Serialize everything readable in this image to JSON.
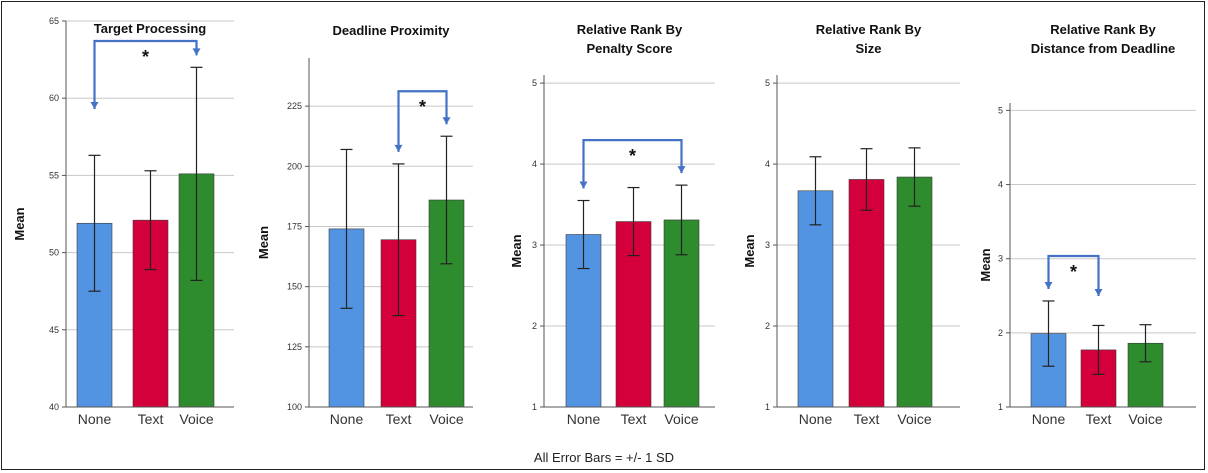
{
  "footnote": "All Error Bars = +/- 1 SD",
  "colors": {
    "None": "#5294e2",
    "Text": "#d4003c",
    "Voice": "#2e8b2e",
    "bracket": "#4472c4",
    "grid": "#c8c8c8"
  },
  "chart_data": [
    {
      "type": "bar",
      "title": [
        "Target Processing"
      ],
      "ylabel": "Mean",
      "categories": [
        "None",
        "Text",
        "Voice"
      ],
      "values": [
        51.9,
        52.1,
        55.1
      ],
      "error_sd": [
        4.4,
        3.2,
        6.9
      ],
      "ylim": [
        40,
        65
      ],
      "yticks": [
        40,
        45,
        50,
        55,
        60,
        65
      ],
      "grid": true,
      "significance": {
        "from": "None",
        "to": "Voice",
        "label": "*"
      }
    },
    {
      "type": "bar",
      "title": [
        "Deadline Proximity"
      ],
      "ylabel": "Mean",
      "categories": [
        "None",
        "Text",
        "Voice"
      ],
      "values": [
        174,
        169.5,
        186
      ],
      "error_sd": [
        33,
        31.5,
        26.5
      ],
      "ylim": [
        100,
        245
      ],
      "yticks": [
        100,
        125,
        150,
        175,
        200,
        225
      ],
      "grid": true,
      "significance": {
        "from": "Text",
        "to": "Voice",
        "label": "*"
      }
    },
    {
      "type": "bar",
      "title": [
        "Relative Rank By",
        "Penalty Score"
      ],
      "ylabel": "Mean",
      "categories": [
        "None",
        "Text",
        "Voice"
      ],
      "values": [
        3.13,
        3.29,
        3.31
      ],
      "error_sd": [
        0.42,
        0.42,
        0.43
      ],
      "ylim": [
        1,
        5.1
      ],
      "yticks": [
        1,
        2,
        3,
        4,
        5
      ],
      "grid": true,
      "significance": {
        "from": "None",
        "to": "Voice",
        "label": "*"
      }
    },
    {
      "type": "bar",
      "title": [
        "Relative Rank By",
        "Size"
      ],
      "ylabel": "Mean",
      "categories": [
        "None",
        "Text",
        "Voice"
      ],
      "values": [
        3.67,
        3.81,
        3.84
      ],
      "error_sd": [
        0.42,
        0.38,
        0.36
      ],
      "ylim": [
        1,
        5.1
      ],
      "yticks": [
        1,
        2,
        3,
        4,
        5
      ],
      "grid": true,
      "significance": null
    },
    {
      "type": "bar",
      "title": [
        "Relative Rank By",
        "Distance from Deadline"
      ],
      "ylabel": "Mean",
      "categories": [
        "None",
        "Text",
        "Voice"
      ],
      "values": [
        1.99,
        1.77,
        1.86
      ],
      "error_sd": [
        0.44,
        0.33,
        0.25
      ],
      "ylim": [
        1,
        5.1
      ],
      "yticks": [
        1,
        2,
        3,
        4,
        5
      ],
      "grid": true,
      "significance": {
        "from": "None",
        "to": "Text",
        "label": "*"
      }
    }
  ]
}
